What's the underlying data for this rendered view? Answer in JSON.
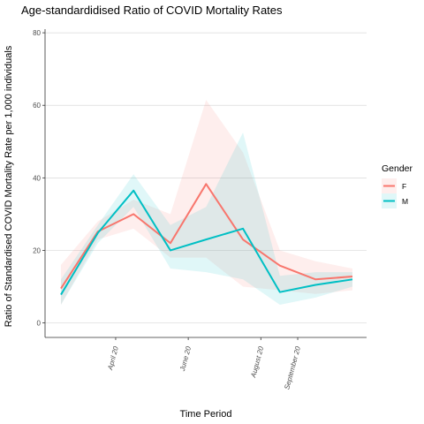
{
  "chart_data": {
    "type": "line",
    "title": "Age-standardidised Ratio of COVID Mortality Rates",
    "xlabel": "Time Period",
    "ylabel": "Ratio of Standardised COVID Mortality Rate per 1,000 individuals",
    "ylim": [
      -4,
      81
    ],
    "yticks": [
      0,
      20,
      40,
      60,
      80
    ],
    "x_start": "2020-03-01",
    "x": [
      "2020-03-01",
      "2020-04-01",
      "2020-05-01",
      "2020-06-01",
      "2020-07-01",
      "2020-08-01",
      "2020-09-01",
      "2020-10-01",
      "2020-11-01"
    ],
    "xticks": [
      {
        "label": "April 20",
        "date": "2020-04-16"
      },
      {
        "label": "June 20",
        "date": "2020-06-16"
      },
      {
        "label": "August 20",
        "date": "2020-08-16"
      },
      {
        "label": "September 20",
        "date": "2020-09-16"
      }
    ],
    "grid": true,
    "legend": {
      "title": "Gender",
      "position": "right"
    },
    "series": [
      {
        "name": "F",
        "color": "#F8766D",
        "values": [
          9.5,
          25.2,
          30.0,
          22.0,
          38.3,
          23.0,
          15.8,
          12.0,
          12.8
        ],
        "lower": [
          5,
          23,
          26,
          18,
          18,
          10,
          9,
          8,
          9
        ],
        "upper": [
          16,
          28,
          34,
          30,
          61.5,
          47,
          20,
          17,
          15
        ]
      },
      {
        "name": "M",
        "color": "#00BFC4",
        "values": [
          7.8,
          24.8,
          36.5,
          20.0,
          23.0,
          26.0,
          8.5,
          10.5,
          12.0
        ],
        "lower": [
          5,
          22,
          32,
          15,
          14,
          12,
          5,
          7,
          10
        ],
        "upper": [
          12,
          27,
          41,
          27,
          32,
          52.5,
          13,
          14,
          14
        ]
      }
    ]
  }
}
